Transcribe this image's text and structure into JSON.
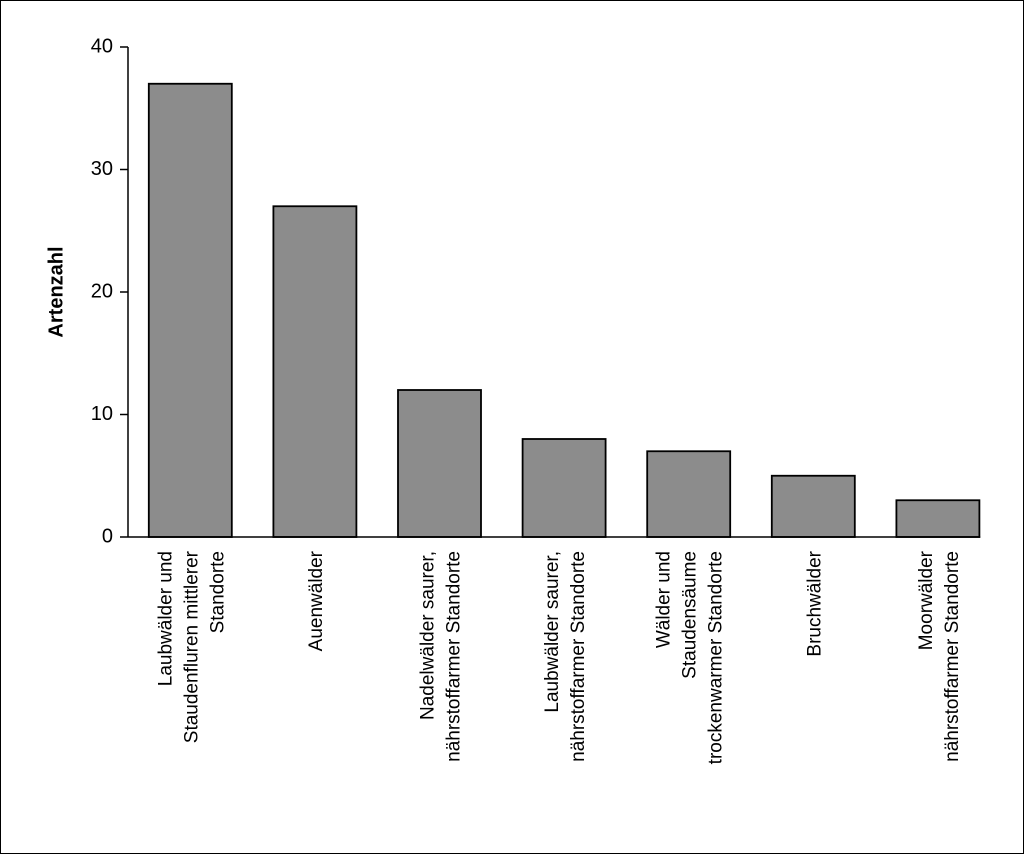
{
  "chart_data": {
    "type": "bar",
    "title": "",
    "xlabel": "",
    "ylabel": "Artenzahl",
    "ylim": [
      0,
      40
    ],
    "yticks": [
      0,
      10,
      20,
      30,
      40
    ],
    "grid": false,
    "bar_color": "#8c8c8c",
    "categories": [
      "Laubwälder und Staudenfluren mittlerer Standorte",
      "Auenwälder",
      "Nadelwälder saurer, nährstoffarmer Standorte",
      "Laubwälder saurer, nährstoffarmer Standorte",
      "Wälder und Staudensäume trockenwarmer Standorte",
      "Bruchwälder",
      "Moorwälder nährstoffarmer Standorte"
    ],
    "category_lines": [
      [
        "Laubwälder und",
        "Staudenfluren mittlerer",
        "Standorte"
      ],
      [
        "Auenwälder"
      ],
      [
        "Nadelwälder saurer,",
        "nährstoffarmer Standorte"
      ],
      [
        "Laubwälder saurer,",
        "nährstoffarmer Standorte"
      ],
      [
        "Wälder und",
        "Staudensäume",
        "trockenwarmer Standorte"
      ],
      [
        "Bruchwälder"
      ],
      [
        "Moorwälder",
        "nährstoffarmer Standorte"
      ]
    ],
    "values": [
      37,
      27,
      12,
      8,
      7,
      5,
      3
    ]
  }
}
